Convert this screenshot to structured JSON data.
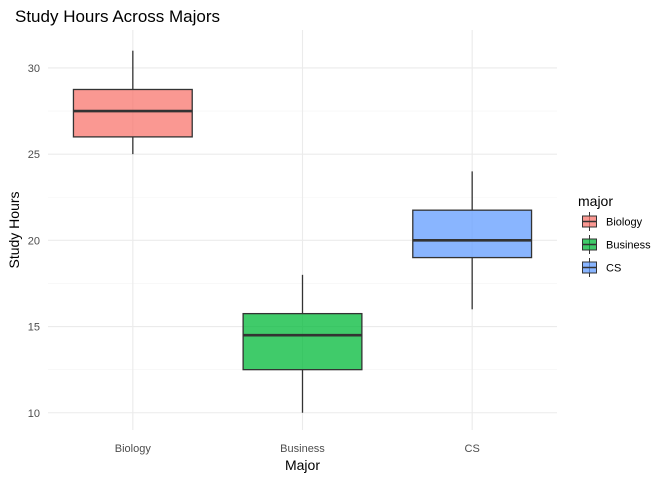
{
  "chart_data": {
    "type": "boxplot",
    "title": "Study Hours Across Majors",
    "xlabel": "Major",
    "ylabel": "Study Hours",
    "ylim": [
      9.0,
      32.2
    ],
    "yticks": [
      10,
      15,
      20,
      25,
      30
    ],
    "grid": true,
    "categories": [
      "Biology",
      "Business",
      "CS"
    ],
    "boxes": [
      {
        "category": "Biology",
        "min": 25,
        "q1": 26,
        "median": 27.5,
        "q3": 28.75,
        "max": 31,
        "color": "#F8766D"
      },
      {
        "category": "Business",
        "min": 10,
        "q1": 12.5,
        "median": 14.5,
        "q3": 15.75,
        "max": 18,
        "color": "#00BA38"
      },
      {
        "category": "CS",
        "min": 16,
        "q1": 19,
        "median": 20,
        "q3": 21.75,
        "max": 24,
        "color": "#619CFF"
      }
    ],
    "legend": {
      "title": "major",
      "position": "right",
      "entries": [
        "Biology",
        "Business",
        "CS"
      ]
    }
  }
}
